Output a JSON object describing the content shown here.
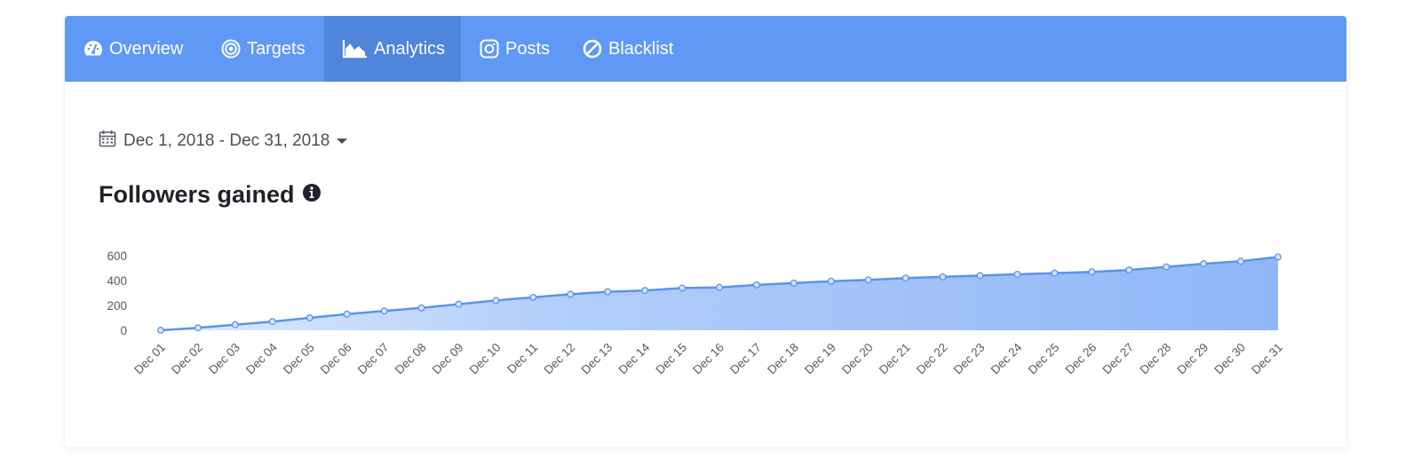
{
  "nav": {
    "tabs": [
      {
        "label": "Overview",
        "icon": "dashboard-icon",
        "active": false
      },
      {
        "label": "Targets",
        "icon": "target-icon",
        "active": false
      },
      {
        "label": "Analytics",
        "icon": "area-chart-icon",
        "active": true
      },
      {
        "label": "Posts",
        "icon": "instagram-icon",
        "active": false
      },
      {
        "label": "Blacklist",
        "icon": "ban-icon",
        "active": false
      }
    ]
  },
  "date_range": {
    "label": "Dec 1, 2018 - Dec 31, 2018",
    "icon": "calendar-icon"
  },
  "section": {
    "title": "Followers gained",
    "info_icon": "info-circle-icon"
  },
  "colors": {
    "nav_bg": "#5f99f5",
    "nav_active": "#4f85da",
    "series": "#5b93ee",
    "area_fill_end": "#8fb7f7"
  },
  "chart_data": {
    "type": "area",
    "x": [
      "Dec 01",
      "Dec 02",
      "Dec 03",
      "Dec 04",
      "Dec 05",
      "Dec 06",
      "Dec 07",
      "Dec 08",
      "Dec 09",
      "Dec 10",
      "Dec 11",
      "Dec 12",
      "Dec 13",
      "Dec 14",
      "Dec 15",
      "Dec 16",
      "Dec 17",
      "Dec 18",
      "Dec 19",
      "Dec 20",
      "Dec 21",
      "Dec 22",
      "Dec 23",
      "Dec 24",
      "Dec 25",
      "Dec 26",
      "Dec 27",
      "Dec 28",
      "Dec 29",
      "Dec 30",
      "Dec 31"
    ],
    "series": [
      {
        "values": [
          0,
          20,
          45,
          70,
          100,
          130,
          155,
          180,
          210,
          240,
          265,
          290,
          310,
          320,
          340,
          345,
          365,
          380,
          395,
          405,
          420,
          430,
          440,
          450,
          460,
          470,
          485,
          510,
          535,
          555,
          590
        ]
      }
    ],
    "yticks": [
      0,
      200,
      400,
      600
    ],
    "ylim": [
      0,
      600
    ],
    "title": "Followers gained",
    "xlabel": "",
    "ylabel": "",
    "grid": false,
    "legend": false
  }
}
